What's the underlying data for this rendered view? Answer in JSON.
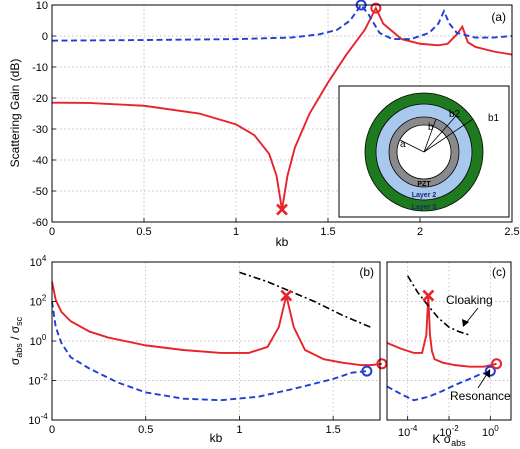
{
  "chart_data": [
    {
      "id": "a",
      "type": "line",
      "panel_label": "(a)",
      "xlabel": "kb",
      "ylabel": "Scattering Gain (dB)",
      "xlim": [
        0,
        2.5
      ],
      "ylim": [
        -60,
        10
      ],
      "xticks": [
        "0",
        "0.5",
        "1",
        "1.5",
        "2",
        "2.5"
      ],
      "yticks": [
        "10",
        "0",
        "-10",
        "-20",
        "-30",
        "-40",
        "-50",
        "-60"
      ],
      "grid": true,
      "series": [
        {
          "style": "solid",
          "color": "#e8232a",
          "x": [
            0.0,
            0.2,
            0.5,
            0.8,
            1.0,
            1.1,
            1.18,
            1.22,
            1.25,
            1.28,
            1.32,
            1.4,
            1.5,
            1.6,
            1.7,
            1.76,
            1.8,
            1.9,
            2.0,
            2.1,
            2.15,
            2.2,
            2.23,
            2.26,
            2.3,
            2.4,
            2.5
          ],
          "y": [
            -21.5,
            -21.6,
            -22.5,
            -25,
            -28.5,
            -32,
            -38,
            -45,
            -56,
            -45,
            -36,
            -25,
            -15,
            -6,
            2,
            9,
            4,
            -1,
            -2.5,
            -3,
            -2.5,
            0.5,
            3,
            -2,
            -3.5,
            -5,
            -6
          ]
        },
        {
          "style": "dashed",
          "color": "#1f3fd3",
          "x": [
            0.0,
            0.5,
            1.0,
            1.3,
            1.45,
            1.55,
            1.62,
            1.68,
            1.72,
            1.78,
            1.85,
            1.95,
            2.05,
            2.1,
            2.13,
            2.16,
            2.2,
            2.3,
            2.4,
            2.5
          ],
          "y": [
            -1.5,
            -1.3,
            -1.0,
            -0.5,
            0.5,
            2,
            5,
            10,
            7,
            1,
            -1,
            -1,
            1,
            4,
            8,
            4,
            1,
            -0.5,
            -0.5,
            0
          ]
        }
      ],
      "markers": [
        {
          "symbol": "x",
          "color": "#e8232a",
          "x": 1.25,
          "y": -56
        },
        {
          "symbol": "o",
          "color": "#1f3fd3",
          "x": 1.68,
          "y": 10
        },
        {
          "symbol": "o",
          "color": "#e8232a",
          "x": 1.76,
          "y": 9
        }
      ],
      "inset": {
        "labels": [
          "a",
          "b",
          "b2",
          "b1",
          "PZT",
          "Layer 2",
          "Layer 3"
        ],
        "colors": {
          "outer": "#1f7a1f",
          "middle": "#a9c8ee",
          "inner": "#8a8a8a",
          "core": "#ffffff"
        }
      }
    },
    {
      "id": "b",
      "type": "line",
      "panel_label": "(b)",
      "xlabel": "kb",
      "ylabel": "σabs / σsc",
      "yscale": "log",
      "xlim": [
        0,
        1.75
      ],
      "ylim": [
        0.0001,
        10000
      ],
      "xticks": [
        "0",
        "0.5",
        "1",
        "1.5"
      ],
      "yticks": [
        "10^4",
        "10^2",
        "10^0",
        "10^-2",
        "10^-4"
      ],
      "grid": true,
      "series": [
        {
          "style": "solid",
          "color": "#e8232a",
          "x": [
            0.0,
            0.02,
            0.05,
            0.1,
            0.2,
            0.3,
            0.5,
            0.7,
            0.9,
            1.05,
            1.15,
            1.21,
            1.25,
            1.29,
            1.35,
            1.45,
            1.55,
            1.65,
            1.7,
            1.76
          ],
          "y": [
            1000,
            120,
            30,
            10,
            3,
            1.5,
            0.6,
            0.35,
            0.25,
            0.25,
            0.5,
            5,
            200,
            5,
            0.35,
            0.12,
            0.08,
            0.06,
            0.06,
            0.07
          ]
        },
        {
          "style": "dashed",
          "color": "#1f3fd3",
          "x": [
            0.0,
            0.02,
            0.05,
            0.1,
            0.2,
            0.35,
            0.5,
            0.7,
            0.9,
            1.1,
            1.3,
            1.5,
            1.6,
            1.68
          ],
          "y": [
            100,
            5,
            0.8,
            0.15,
            0.04,
            0.008,
            0.0025,
            0.0012,
            0.001,
            0.0015,
            0.004,
            0.012,
            0.025,
            0.03
          ]
        },
        {
          "style": "dashdot",
          "color": "#000000",
          "x": [
            1.0,
            1.15,
            1.25,
            1.4,
            1.55,
            1.7
          ],
          "y": [
            3000,
            1000,
            400,
            100,
            20,
            5
          ]
        }
      ],
      "markers": [
        {
          "symbol": "x",
          "color": "#e8232a",
          "x": 1.25,
          "y": 200
        },
        {
          "symbol": "o",
          "color": "#1f3fd3",
          "x": 1.68,
          "y": 0.03
        },
        {
          "symbol": "o",
          "color": "#e8232a",
          "x": 1.76,
          "y": 0.07
        }
      ]
    },
    {
      "id": "c",
      "type": "line",
      "panel_label": "(c)",
      "xlabel": "K σabs",
      "xscale": "log",
      "yscale": "log",
      "xlim": [
        1e-05,
        10
      ],
      "ylim": [
        0.0001,
        10000
      ],
      "xticks": [
        "10^-4",
        "10^-2",
        "10^0"
      ],
      "grid": true,
      "annotations": [
        "Cloaking",
        "Resonance"
      ],
      "series": [
        {
          "style": "solid",
          "color": "#e8232a",
          "x": [
            1e-05,
            5e-05,
            0.0002,
            0.0005,
            0.0008,
            0.001,
            0.0012,
            0.0015,
            0.002,
            0.005,
            0.02,
            0.1,
            0.5,
            1.0,
            2.0
          ],
          "y": [
            0.8,
            0.4,
            0.25,
            0.25,
            2,
            200,
            2,
            0.3,
            0.12,
            0.08,
            0.06,
            0.05,
            0.05,
            0.06,
            0.07
          ]
        },
        {
          "style": "dashed",
          "color": "#1f3fd3",
          "x": [
            1e-05,
            5e-05,
            0.0002,
            0.001,
            0.005,
            0.02,
            0.1,
            0.3,
            0.7,
            1.0
          ],
          "y": [
            0.005,
            0.002,
            0.001,
            0.0015,
            0.003,
            0.006,
            0.012,
            0.02,
            0.025,
            0.03
          ]
        },
        {
          "style": "dashdot",
          "color": "#000000",
          "x": [
            0.0001,
            0.0003,
            0.001,
            0.003,
            0.01,
            0.03,
            0.1
          ],
          "y": [
            2000,
            300,
            60,
            15,
            5,
            3,
            2
          ]
        }
      ],
      "markers": [
        {
          "symbol": "x",
          "color": "#e8232a",
          "x": 0.001,
          "y": 200
        },
        {
          "symbol": "o",
          "color": "#1f3fd3",
          "x": 1.0,
          "y": 0.03
        },
        {
          "symbol": "o",
          "color": "#e8232a",
          "x": 2.0,
          "y": 0.07
        }
      ]
    }
  ]
}
